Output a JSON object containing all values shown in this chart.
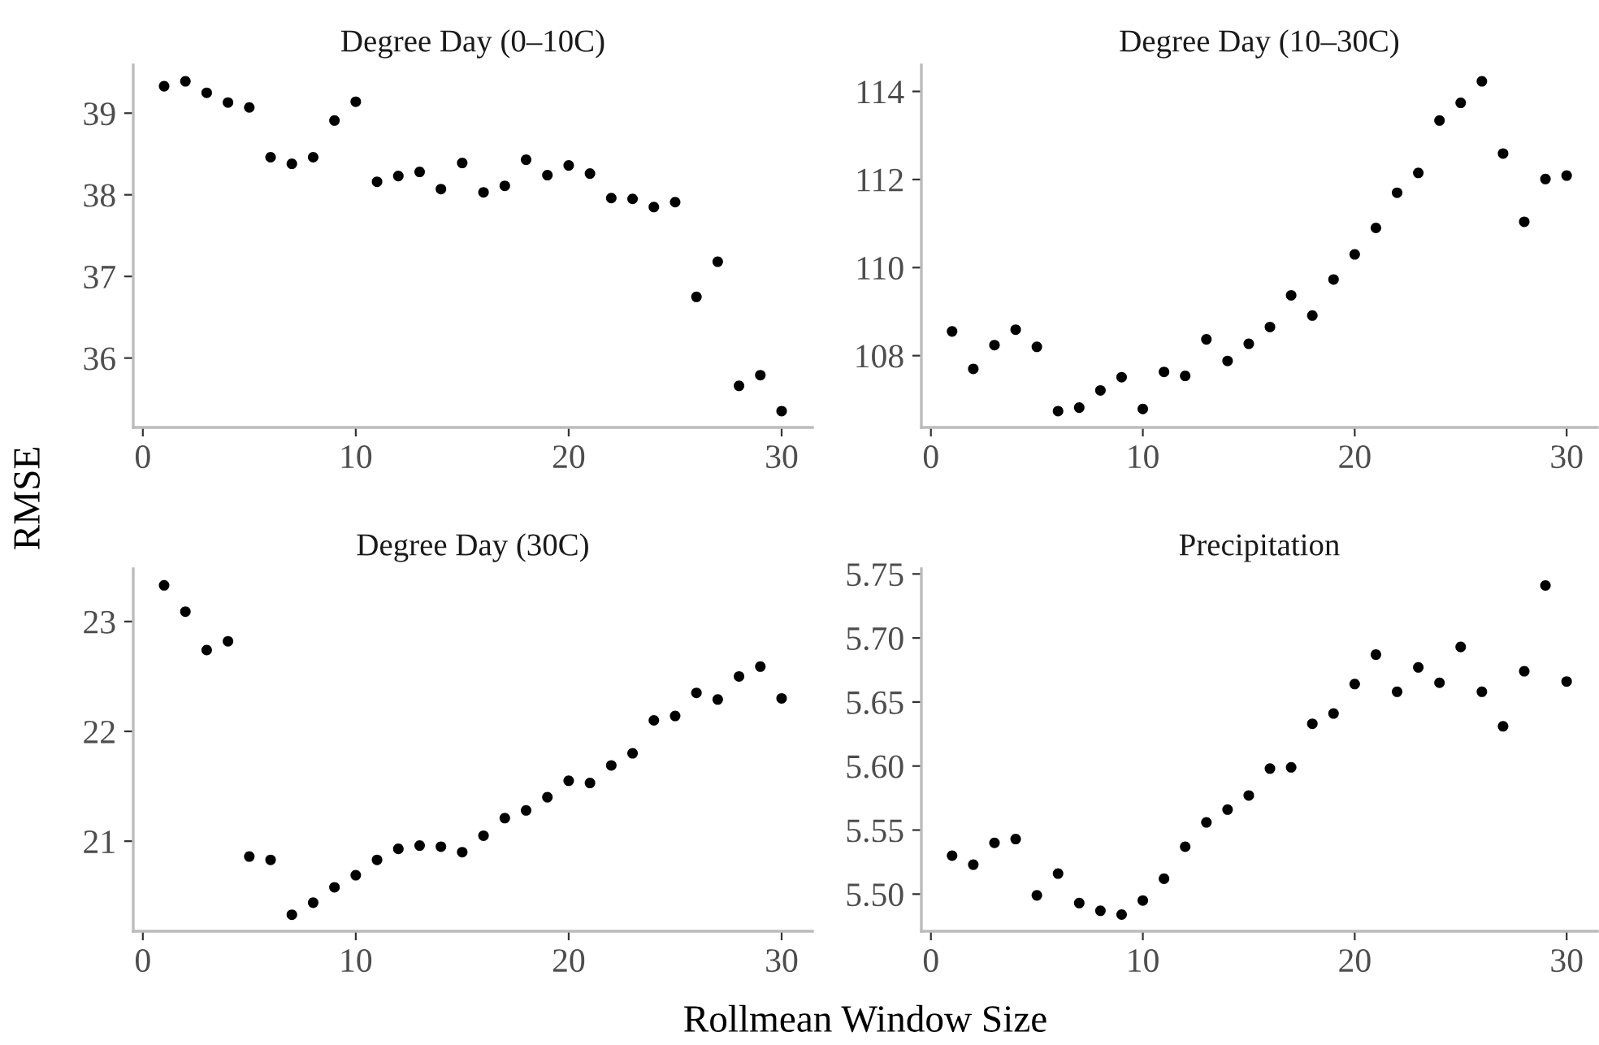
{
  "chart_data": [
    {
      "type": "scatter",
      "title": "Degree Day (0–10C)",
      "xlabel": "Rollmean Window Size",
      "ylabel": "RMSE",
      "marker": "circle",
      "grid": false,
      "legend": false,
      "xlim": [
        -0.45,
        31.45
      ],
      "xticks": [
        0,
        10,
        20,
        30
      ],
      "ylim": [
        35.15,
        39.59
      ],
      "yticks": [
        36,
        37,
        38,
        39
      ],
      "x": [
        1,
        2,
        3,
        4,
        5,
        6,
        7,
        8,
        9,
        10,
        11,
        12,
        13,
        14,
        15,
        16,
        17,
        18,
        19,
        20,
        21,
        22,
        23,
        24,
        25,
        26,
        27,
        28,
        29,
        30
      ],
      "series": [
        {
          "color": "#000000",
          "values": [
            39.33,
            39.39,
            39.25,
            39.13,
            39.07,
            38.46,
            38.38,
            38.46,
            38.91,
            39.14,
            38.16,
            38.23,
            38.28,
            38.07,
            38.39,
            38.03,
            38.11,
            38.43,
            38.24,
            38.36,
            38.26,
            37.96,
            37.95,
            37.85,
            37.91,
            36.75,
            37.18,
            35.66,
            35.79,
            35.35
          ]
        }
      ]
    },
    {
      "type": "scatter",
      "title": "Degree Day (10–30C)",
      "marker": "circle",
      "grid": false,
      "legend": false,
      "xlim": [
        -0.45,
        31.45
      ],
      "xticks": [
        0,
        10,
        20,
        30
      ],
      "ylim": [
        106.37,
        114.6
      ],
      "yticks": [
        108,
        110,
        112,
        114
      ],
      "x": [
        1,
        2,
        3,
        4,
        5,
        6,
        7,
        8,
        9,
        10,
        11,
        12,
        13,
        14,
        15,
        16,
        17,
        18,
        19,
        20,
        21,
        22,
        23,
        24,
        25,
        26,
        27,
        28,
        29,
        30
      ],
      "series": [
        {
          "color": "#000000",
          "values": [
            108.55,
            107.7,
            108.24,
            108.59,
            108.2,
            106.74,
            106.82,
            107.21,
            107.51,
            106.79,
            107.63,
            107.54,
            108.37,
            107.88,
            108.27,
            108.65,
            109.37,
            108.91,
            109.73,
            110.3,
            110.9,
            111.7,
            112.15,
            113.34,
            113.74,
            114.23,
            112.59,
            111.04,
            112.01,
            112.09
          ]
        }
      ]
    },
    {
      "type": "scatter",
      "title": "Degree Day (30C)",
      "marker": "circle",
      "grid": false,
      "legend": false,
      "xlim": [
        -0.45,
        31.45
      ],
      "xticks": [
        0,
        10,
        20,
        30
      ],
      "ylim": [
        20.18,
        23.48
      ],
      "yticks": [
        21,
        22,
        23
      ],
      "x": [
        1,
        2,
        3,
        4,
        5,
        6,
        7,
        8,
        9,
        10,
        11,
        12,
        13,
        14,
        15,
        16,
        17,
        18,
        19,
        20,
        21,
        22,
        23,
        24,
        25,
        26,
        27,
        28,
        29,
        30
      ],
      "series": [
        {
          "color": "#000000",
          "values": [
            23.33,
            23.09,
            22.74,
            22.82,
            20.86,
            20.83,
            20.33,
            20.44,
            20.58,
            20.69,
            20.83,
            20.93,
            20.96,
            20.95,
            20.9,
            21.05,
            21.21,
            21.28,
            21.4,
            21.55,
            21.53,
            21.69,
            21.8,
            22.1,
            22.14,
            22.35,
            22.29,
            22.5,
            22.59,
            22.3
          ]
        }
      ]
    },
    {
      "type": "scatter",
      "title": "Precipitation",
      "marker": "circle",
      "grid": false,
      "legend": false,
      "xlim": [
        -0.45,
        31.45
      ],
      "xticks": [
        0,
        10,
        20,
        30
      ],
      "ylim": [
        5.471,
        5.754
      ],
      "yticks": [
        {
          "value": 5.5,
          "label": "5.50"
        },
        {
          "value": 5.55,
          "label": "5.55"
        },
        {
          "value": 5.6,
          "label": "5.60"
        },
        {
          "value": 5.65,
          "label": "5.65"
        },
        {
          "value": 5.7,
          "label": "5.70"
        },
        {
          "value": 5.75,
          "label": "5.75"
        }
      ],
      "x": [
        1,
        2,
        3,
        4,
        5,
        6,
        7,
        8,
        9,
        10,
        11,
        12,
        13,
        14,
        15,
        16,
        17,
        18,
        19,
        20,
        21,
        22,
        23,
        24,
        25,
        26,
        27,
        28,
        29,
        30
      ],
      "series": [
        {
          "color": "#000000",
          "values": [
            5.53,
            5.523,
            5.54,
            5.543,
            5.499,
            5.516,
            5.493,
            5.487,
            5.484,
            5.495,
            5.512,
            5.537,
            5.556,
            5.566,
            5.577,
            5.598,
            5.599,
            5.633,
            5.641,
            5.664,
            5.687,
            5.658,
            5.677,
            5.665,
            5.693,
            5.658,
            5.631,
            5.674,
            5.741,
            5.666
          ]
        }
      ]
    }
  ]
}
